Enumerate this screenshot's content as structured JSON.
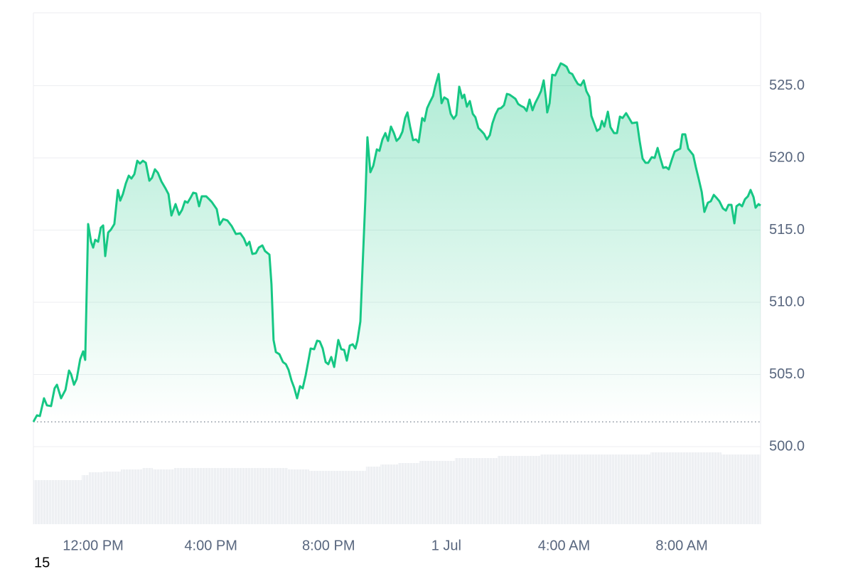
{
  "chart_data": {
    "type": "line",
    "color": "#16c784",
    "grid": true,
    "xlim": [
      9.97,
      34.68
    ],
    "ylim": [
      494.63,
      530.05
    ],
    "xticks": [
      {
        "value": 12,
        "label": "12:00 PM"
      },
      {
        "value": 16,
        "label": "4:00 PM"
      },
      {
        "value": 20,
        "label": "8:00 PM"
      },
      {
        "value": 24,
        "label": "1 Jul"
      },
      {
        "value": 28,
        "label": "4:00 AM"
      },
      {
        "value": 32,
        "label": "8:00 AM"
      }
    ],
    "yticks": [
      {
        "value": 500,
        "label": "500.0"
      },
      {
        "value": 505,
        "label": "505.0"
      },
      {
        "value": 510,
        "label": "510.0"
      },
      {
        "value": 515,
        "label": "515.0"
      },
      {
        "value": 520,
        "label": "520.0"
      },
      {
        "value": 525,
        "label": "525.0"
      }
    ],
    "baseline": 501.72,
    "footnote": "15",
    "x": [
      9.97,
      10.09,
      10.19,
      10.33,
      10.43,
      10.57,
      10.69,
      10.77,
      10.91,
      11.06,
      11.18,
      11.25,
      11.35,
      11.44,
      11.56,
      11.66,
      11.73,
      11.83,
      11.93,
      12.0,
      12.07,
      12.17,
      12.26,
      12.34,
      12.41,
      12.51,
      12.6,
      12.72,
      12.84,
      12.92,
      13.01,
      13.11,
      13.21,
      13.3,
      13.4,
      13.5,
      13.59,
      13.69,
      13.79,
      13.91,
      14.0,
      14.1,
      14.2,
      14.32,
      14.46,
      14.56,
      14.66,
      14.8,
      14.92,
      15.02,
      15.12,
      15.21,
      15.31,
      15.4,
      15.5,
      15.6,
      15.69,
      15.84,
      15.94,
      16.03,
      16.2,
      16.3,
      16.42,
      16.56,
      16.71,
      16.85,
      17.0,
      17.12,
      17.22,
      17.31,
      17.41,
      17.53,
      17.63,
      17.75,
      17.84,
      17.99,
      18.06,
      18.13,
      18.21,
      18.33,
      18.45,
      18.55,
      18.64,
      18.74,
      18.83,
      18.93,
      19.03,
      19.12,
      19.22,
      19.32,
      19.39,
      19.51,
      19.61,
      19.7,
      19.8,
      19.9,
      19.99,
      20.09,
      20.19,
      20.33,
      20.43,
      20.53,
      20.62,
      20.72,
      20.82,
      20.91,
      20.98,
      21.08,
      21.15,
      21.25,
      21.32,
      21.42,
      21.52,
      21.64,
      21.73,
      21.83,
      21.93,
      22.02,
      22.12,
      22.22,
      22.31,
      22.41,
      22.51,
      22.6,
      22.68,
      22.77,
      22.87,
      22.97,
      23.06,
      23.18,
      23.26,
      23.35,
      23.45,
      23.55,
      23.62,
      23.74,
      23.84,
      23.93,
      24.05,
      24.15,
      24.25,
      24.34,
      24.44,
      24.54,
      24.61,
      24.7,
      24.8,
      24.9,
      24.99,
      25.09,
      25.19,
      25.28,
      25.38,
      25.48,
      25.57,
      25.67,
      25.77,
      25.86,
      25.96,
      26.06,
      26.15,
      26.25,
      26.35,
      26.44,
      26.54,
      26.64,
      26.73,
      26.83,
      26.93,
      27.02,
      27.12,
      27.22,
      27.31,
      27.39,
      27.43,
      27.51,
      27.6,
      27.7,
      27.8,
      27.89,
      27.99,
      28.09,
      28.18,
      28.28,
      28.38,
      28.47,
      28.57,
      28.67,
      28.76,
      28.86,
      28.93,
      29.03,
      29.12,
      29.22,
      29.29,
      29.37,
      29.49,
      29.58,
      29.7,
      29.8,
      29.9,
      29.99,
      30.11,
      30.21,
      30.31,
      30.48,
      30.57,
      30.67,
      30.77,
      30.86,
      30.98,
      31.08,
      31.18,
      31.27,
      31.37,
      31.47,
      31.56,
      31.66,
      31.76,
      31.85,
      31.95,
      32.02,
      32.12,
      32.22,
      32.39,
      32.48,
      32.58,
      32.68,
      32.77,
      32.89,
      32.99,
      33.09,
      33.18,
      33.28,
      33.4,
      33.5,
      33.59,
      33.69,
      33.79,
      33.86,
      33.96,
      34.05,
      34.15,
      34.25,
      34.34,
      34.44,
      34.51,
      34.61,
      34.68
    ],
    "values": [
      501.72,
      502.17,
      502.12,
      503.35,
      502.86,
      502.81,
      504.04,
      504.29,
      503.35,
      503.94,
      505.27,
      505.02,
      504.29,
      504.68,
      506.06,
      506.6,
      506.01,
      515.42,
      514.19,
      513.79,
      514.33,
      514.19,
      515.17,
      515.32,
      513.2,
      514.83,
      515.02,
      515.42,
      517.78,
      517.04,
      517.49,
      518.23,
      518.77,
      518.57,
      518.87,
      519.8,
      519.61,
      519.8,
      519.66,
      518.42,
      518.62,
      519.21,
      518.97,
      518.37,
      517.88,
      517.49,
      516.01,
      516.8,
      516.06,
      516.4,
      517.0,
      516.9,
      517.24,
      517.59,
      517.54,
      516.65,
      517.34,
      517.34,
      517.14,
      516.95,
      516.45,
      515.37,
      515.76,
      515.67,
      515.27,
      514.73,
      514.78,
      514.43,
      513.94,
      514.19,
      513.35,
      513.4,
      513.79,
      513.94,
      513.55,
      513.3,
      511.23,
      507.39,
      506.55,
      506.4,
      505.86,
      505.71,
      505.32,
      504.58,
      504.09,
      503.35,
      504.19,
      504.04,
      504.93,
      506.01,
      506.8,
      506.75,
      507.34,
      507.29,
      506.8,
      505.86,
      505.71,
      506.21,
      505.52,
      507.39,
      506.75,
      506.7,
      505.96,
      507.0,
      507.09,
      506.8,
      507.34,
      508.67,
      512.22,
      517.14,
      521.43,
      519.01,
      519.46,
      520.59,
      520.49,
      521.28,
      521.72,
      521.18,
      522.17,
      521.72,
      521.18,
      521.38,
      521.82,
      522.76,
      523.15,
      522.17,
      521.23,
      521.28,
      521.08,
      522.76,
      522.56,
      523.45,
      523.89,
      524.29,
      524.93,
      525.81,
      523.79,
      524.19,
      524.04,
      523.05,
      522.71,
      522.96,
      524.93,
      524.14,
      524.38,
      523.55,
      523.94,
      523.05,
      522.81,
      522.07,
      521.87,
      521.67,
      521.28,
      521.58,
      522.41,
      523.0,
      523.4,
      523.45,
      523.65,
      524.43,
      524.38,
      524.24,
      524.09,
      523.74,
      523.6,
      523.5,
      523.25,
      524.04,
      523.3,
      523.79,
      524.19,
      524.63,
      525.37,
      524.04,
      523.15,
      523.79,
      525.76,
      525.71,
      526.16,
      526.55,
      526.45,
      526.31,
      525.91,
      525.81,
      525.42,
      525.12,
      525.02,
      525.37,
      524.63,
      524.24,
      522.91,
      522.36,
      521.87,
      522.02,
      522.56,
      522.17,
      523.2,
      522.12,
      521.72,
      521.72,
      522.86,
      522.76,
      523.1,
      522.76,
      522.41,
      522.46,
      521.18,
      519.95,
      519.66,
      519.66,
      520.05,
      520.0,
      520.69,
      520.0,
      519.31,
      519.36,
      519.21,
      519.85,
      520.44,
      520.54,
      520.64,
      521.63,
      521.63,
      520.64,
      520.2,
      519.36,
      518.52,
      517.64,
      516.26,
      516.9,
      517.0,
      517.44,
      517.24,
      517.0,
      516.5,
      516.35,
      516.75,
      516.75,
      515.47,
      516.65,
      516.8,
      516.65,
      517.14,
      517.34,
      517.78,
      517.29,
      516.55,
      516.8,
      516.7
    ],
    "volume": {
      "color": "#eef0f3",
      "lim": [
        0,
        101
      ],
      "edges": [
        9.97,
        11.61,
        11.85,
        12.34,
        12.94,
        13.67,
        14.03,
        14.75,
        18.62,
        19.34,
        21.27,
        21.76,
        22.36,
        23.09,
        24.29,
        25.74,
        27.19,
        30.94,
        33.35,
        34.68
      ],
      "values": [
        62,
        69,
        73,
        74,
        77,
        79,
        77,
        79,
        77,
        75,
        81,
        84,
        86,
        89,
        93,
        96,
        98,
        101,
        98
      ]
    }
  }
}
